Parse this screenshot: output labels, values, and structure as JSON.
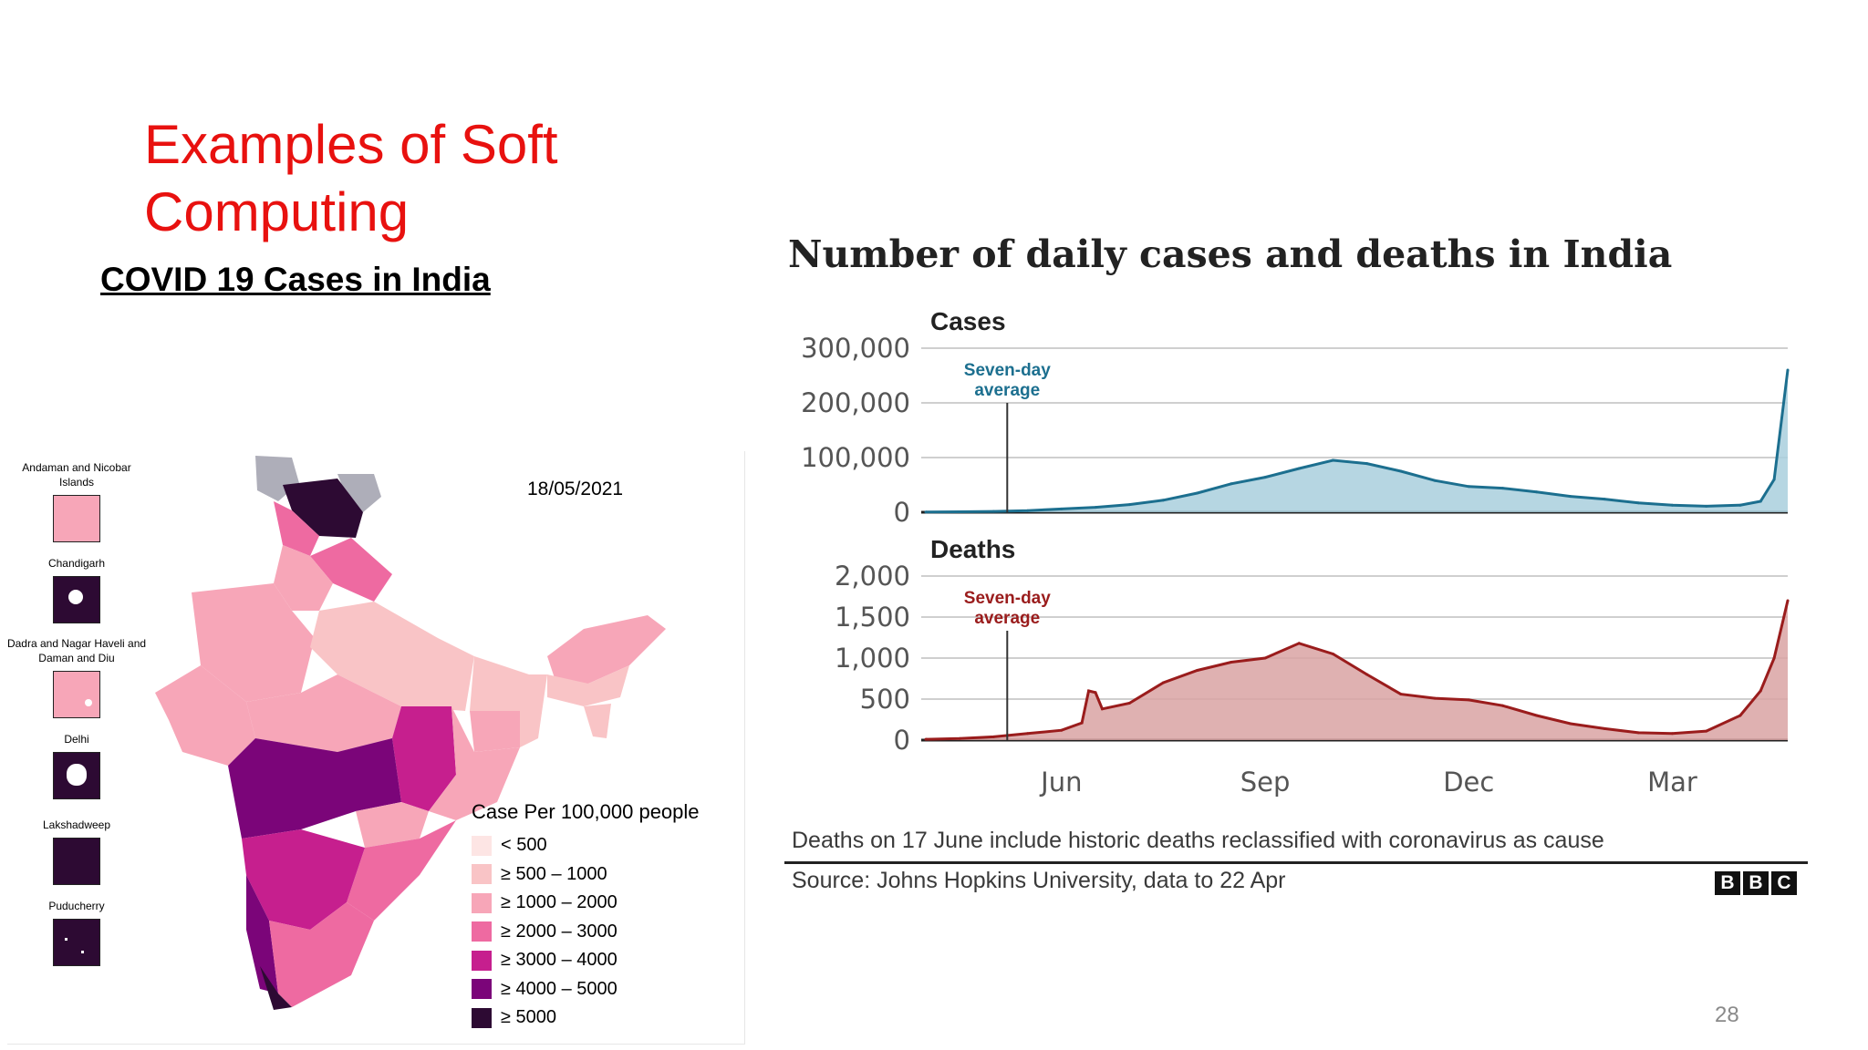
{
  "slide": {
    "title": "Examples of Soft Computing",
    "subtitle": "COVID 19 Cases in India",
    "page_number": "28"
  },
  "map": {
    "date": "18/05/2021",
    "union_territories": [
      {
        "label": "Andaman and Nicobar Islands",
        "color": "#f7a6b8"
      },
      {
        "label": "Chandigarh",
        "color": "#2d0a33"
      },
      {
        "label": "Dadra and Nagar Haveli and Daman and Diu",
        "color": "#f7a6b8"
      },
      {
        "label": "Delhi",
        "color": "#2d0a33"
      },
      {
        "label": "Lakshadweep",
        "color": "#2d0a33"
      },
      {
        "label": "Puducherry",
        "color": "#2d0a33"
      }
    ],
    "legend": {
      "title": "Case Per 100,000 people",
      "items": [
        {
          "label": "< 500",
          "color": "#fde5e4"
        },
        {
          "label": "≥ 500 – 1000",
          "color": "#f9c4c6"
        },
        {
          "label": "≥ 1000 – 2000",
          "color": "#f7a6b8"
        },
        {
          "label": "≥ 2000 – 3000",
          "color": "#ee6aa1"
        },
        {
          "label": "≥ 3000 – 4000",
          "color": "#c61f8e"
        },
        {
          "label": "≥ 4000 – 5000",
          "color": "#7b0579"
        },
        {
          "label": "≥ 5000",
          "color": "#2d0a33"
        }
      ]
    }
  },
  "chart": {
    "note": "Deaths on 17 June include historic deaths reclassified with coronavirus as cause",
    "source": "Source: Johns Hopkins University, data to 22 Apr",
    "logo_letters": [
      "B",
      "B",
      "C"
    ]
  },
  "chart_data": {
    "type": "area",
    "title": "Number of daily cases and deaths in India",
    "x_tick_labels": [
      "Jun",
      "Sep",
      "Dec",
      "Mar"
    ],
    "x_tick_months": [
      2,
      5,
      8,
      11
    ],
    "x_range_months": [
      0,
      12.7
    ],
    "panels": [
      {
        "name": "Cases",
        "color": "#1c6f8f",
        "fill": "#a9cfdd",
        "annotation": "Seven-day average",
        "annotation_x_months": 1.2,
        "ylim": [
          0,
          300000
        ],
        "y_ticks": [
          0,
          100000,
          200000,
          300000
        ],
        "y_tick_labels": [
          "0",
          "100,000",
          "200,000",
          "300,000"
        ],
        "x_months": [
          0,
          0.5,
          1,
          1.5,
          2,
          2.5,
          3,
          3.5,
          4,
          4.5,
          5,
          5.5,
          6,
          6.5,
          7,
          7.5,
          8,
          8.5,
          9,
          9.5,
          10,
          10.5,
          11,
          11.5,
          12,
          12.3,
          12.5,
          12.7
        ],
        "values": [
          500,
          800,
          1500,
          3000,
          6000,
          9000,
          14000,
          22000,
          35000,
          52000,
          64000,
          80000,
          95000,
          89000,
          75000,
          58000,
          47000,
          44000,
          37000,
          29000,
          24000,
          17000,
          13000,
          11000,
          13000,
          20000,
          60000,
          260000
        ]
      },
      {
        "name": "Deaths",
        "color": "#9a1c1c",
        "fill": "#d9a3a3",
        "annotation": "Seven-day average",
        "annotation_x_months": 1.2,
        "ylim": [
          0,
          2000
        ],
        "y_ticks": [
          0,
          500,
          1000,
          1500,
          2000
        ],
        "y_tick_labels": [
          "0",
          "500",
          "1,000",
          "1,500",
          "2,000"
        ],
        "x_months": [
          0,
          0.5,
          1,
          1.5,
          2,
          2.3,
          2.4,
          2.5,
          2.6,
          3,
          3.5,
          4,
          4.5,
          5,
          5.5,
          6,
          6.5,
          7,
          7.5,
          8,
          8.5,
          9,
          9.5,
          10,
          10.5,
          11,
          11.5,
          12,
          12.3,
          12.5,
          12.7
        ],
        "values": [
          10,
          20,
          40,
          80,
          120,
          210,
          600,
          580,
          380,
          450,
          700,
          850,
          950,
          1000,
          1180,
          1050,
          800,
          560,
          510,
          490,
          420,
          300,
          200,
          140,
          90,
          80,
          110,
          300,
          600,
          1000,
          1700
        ]
      }
    ]
  }
}
